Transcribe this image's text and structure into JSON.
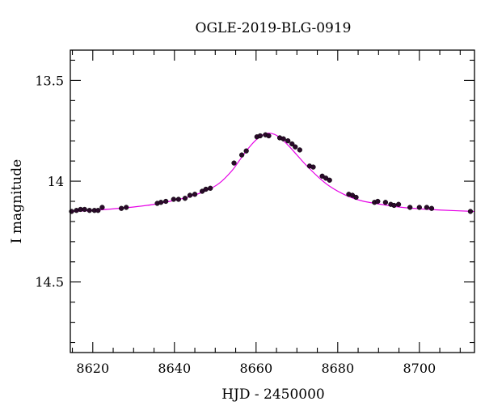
{
  "chart_data": {
    "type": "scatter",
    "title": "OGLE-2019-BLG-0919",
    "xlabel": "HJD - 2450000",
    "ylabel": "I magnitude",
    "xlim": [
      8614.5,
      8713.5
    ],
    "ylim": [
      14.85,
      13.35
    ],
    "y_inverted": true,
    "grid": false,
    "x_ticks": [
      8620,
      8640,
      8660,
      8680,
      8700
    ],
    "x_tick_labels": [
      "8620",
      "8640",
      "8660",
      "8680",
      "8700"
    ],
    "y_ticks": [
      13.5,
      14,
      14.5
    ],
    "y_tick_labels": [
      "13.5",
      "14",
      "14.5"
    ],
    "x_minor_step": 5,
    "y_minor_step": 0.1,
    "colors": {
      "points": "#2a0a2a",
      "model": "#e600e6",
      "axes": "#000000"
    },
    "series": [
      {
        "kind": "points",
        "x": [
          8614.8,
          8616.0,
          8617.0,
          8618.0,
          8619.2,
          8620.4,
          8621.3,
          8622.3,
          8627.0,
          8628.2,
          8635.8,
          8636.7,
          8637.9,
          8639.8,
          8641.0,
          8642.6,
          8643.8,
          8645.0,
          8646.8,
          8647.7,
          8648.8,
          8654.6,
          8656.5,
          8657.6,
          8660.2,
          8661.0,
          8662.3,
          8663.1,
          8665.8,
          8666.7,
          8667.8,
          8668.8,
          8669.6,
          8670.7,
          8673.1,
          8674.0,
          8676.2,
          8677.1,
          8678.0,
          8682.7,
          8683.6,
          8684.5,
          8689.0,
          8689.8,
          8691.7,
          8693.0,
          8693.8,
          8694.9,
          8697.7,
          8700.0,
          8701.8,
          8703.0,
          8712.5
        ],
        "y": [
          14.15,
          14.145,
          14.14,
          14.14,
          14.145,
          14.145,
          14.145,
          14.13,
          14.135,
          14.13,
          14.11,
          14.105,
          14.1,
          14.09,
          14.09,
          14.085,
          14.07,
          14.065,
          14.05,
          14.04,
          14.035,
          13.91,
          13.87,
          13.85,
          13.78,
          13.775,
          13.77,
          13.775,
          13.785,
          13.79,
          13.8,
          13.815,
          13.83,
          13.845,
          13.925,
          13.93,
          13.975,
          13.985,
          13.995,
          14.065,
          14.07,
          14.08,
          14.105,
          14.1,
          14.105,
          14.115,
          14.12,
          14.115,
          14.13,
          14.13,
          14.13,
          14.135,
          14.15
        ]
      },
      {
        "kind": "model",
        "x": [
          8614.5,
          8620,
          8625,
          8630,
          8635,
          8640,
          8644,
          8648,
          8651,
          8654,
          8656,
          8658,
          8660,
          8661.5,
          8663,
          8664.5,
          8666,
          8668,
          8670,
          8672,
          8675,
          8678,
          8682,
          8686,
          8690,
          8695,
          8700,
          8705,
          8713.5
        ],
        "y": [
          14.15,
          14.145,
          14.137,
          14.128,
          14.115,
          14.095,
          14.075,
          14.045,
          14.01,
          13.95,
          13.895,
          13.84,
          13.795,
          13.772,
          13.762,
          13.768,
          13.787,
          13.825,
          13.87,
          13.915,
          13.975,
          14.025,
          14.07,
          14.098,
          14.113,
          14.128,
          14.137,
          14.143,
          14.15
        ]
      }
    ]
  }
}
